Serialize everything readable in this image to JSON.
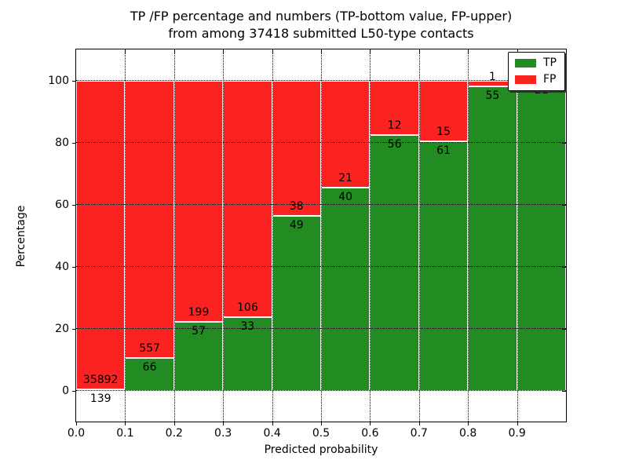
{
  "figure": {
    "title_line1": "TP /FP percentage and numbers (TP-bottom value, FP-upper)",
    "title_line2": "from among 37418 submitted L50-type contacts",
    "xlabel": "Predicted probability",
    "ylabel": "Percentage"
  },
  "legend": {
    "items": [
      {
        "label": "TP",
        "color": "#228B22"
      },
      {
        "label": "FP",
        "color": "#FB2222"
      }
    ]
  },
  "chart_data": {
    "type": "bar",
    "stacked": true,
    "title": "TP /FP percentage and numbers (TP-bottom value, FP-upper) from among 37418 submitted L50-type contacts",
    "xlabel": "Predicted probability",
    "ylabel": "Percentage",
    "total_contacts": 37418,
    "bin_width": 0.1,
    "categories": [
      "0.0-0.1",
      "0.1-0.2",
      "0.2-0.3",
      "0.3-0.4",
      "0.4-0.5",
      "0.5-0.6",
      "0.6-0.7",
      "0.7-0.8",
      "0.8-0.9",
      "0.9-1.0"
    ],
    "x_ticks": [
      0.0,
      0.1,
      0.2,
      0.3,
      0.4,
      0.5,
      0.6,
      0.7,
      0.8,
      0.9
    ],
    "x_tick_labels": [
      "0.0",
      "0.1",
      "0.2",
      "0.3",
      "0.4",
      "0.5",
      "0.6",
      "0.7",
      "0.8",
      "0.9"
    ],
    "y_ticks": [
      0,
      20,
      40,
      60,
      80,
      100
    ],
    "y_tick_labels": [
      "0",
      "20",
      "40",
      "60",
      "80",
      "100"
    ],
    "xlim": [
      0.0,
      1.0
    ],
    "ylim": [
      -10,
      110
    ],
    "grid": true,
    "grid_style": "dotted",
    "legend_position": "upper right",
    "series": [
      {
        "name": "TP",
        "color": "#228B22",
        "counts": [
          139,
          66,
          57,
          33,
          49,
          40,
          56,
          61,
          55,
          21
        ],
        "percentages": [
          0.39,
          10.59,
          22.27,
          23.74,
          56.32,
          65.57,
          82.35,
          80.26,
          98.21,
          100.0
        ]
      },
      {
        "name": "FP",
        "color": "#FB2222",
        "counts": [
          35892,
          557,
          199,
          106,
          38,
          21,
          12,
          15,
          1,
          0
        ],
        "percentages": [
          99.61,
          89.41,
          77.73,
          76.26,
          43.68,
          34.43,
          17.65,
          19.74,
          1.79,
          0.0
        ]
      }
    ]
  }
}
